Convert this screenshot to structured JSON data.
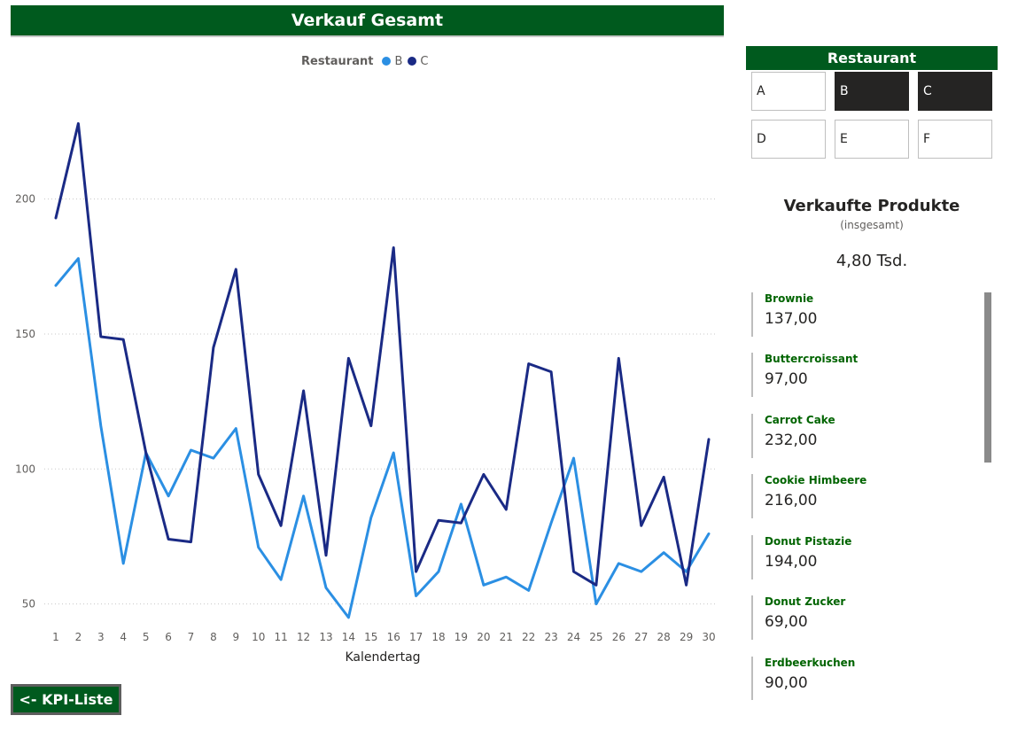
{
  "header": {
    "title": "Verkauf Gesamt"
  },
  "legend": {
    "title": "Restaurant",
    "items": [
      {
        "name": "B",
        "color": "#2b8fe3"
      },
      {
        "name": "C",
        "color": "#1a2a85"
      }
    ]
  },
  "chart_data": {
    "type": "line",
    "title": "Verkauf Gesamt",
    "xlabel": "Kalendertag",
    "ylabel": "",
    "x": [
      1,
      2,
      3,
      4,
      5,
      6,
      7,
      8,
      9,
      10,
      11,
      12,
      13,
      14,
      15,
      16,
      17,
      18,
      19,
      20,
      21,
      22,
      23,
      24,
      25,
      26,
      27,
      28,
      29,
      30
    ],
    "ylim": [
      42,
      236
    ],
    "yticks": [
      50,
      100,
      150,
      200
    ],
    "grid": true,
    "legend_title": "Restaurant",
    "legend_position": "top",
    "series": [
      {
        "name": "B",
        "color": "#2b8fe3",
        "values": [
          168,
          178,
          116,
          65,
          106,
          90,
          107,
          104,
          115,
          71,
          59,
          90,
          56,
          45,
          82,
          106,
          53,
          62,
          87,
          57,
          60,
          55,
          80,
          104,
          50,
          65,
          62,
          69,
          62,
          76
        ]
      },
      {
        "name": "C",
        "color": "#1a2a85",
        "values": [
          193,
          228,
          149,
          148,
          106,
          74,
          73,
          145,
          174,
          98,
          79,
          129,
          68,
          141,
          116,
          182,
          62,
          81,
          80,
          98,
          85,
          139,
          136,
          62,
          57,
          141,
          79,
          97,
          57,
          111
        ]
      }
    ]
  },
  "slicer": {
    "header": "Restaurant",
    "options": [
      {
        "label": "A",
        "selected": false
      },
      {
        "label": "B",
        "selected": true
      },
      {
        "label": "C",
        "selected": true
      },
      {
        "label": "D",
        "selected": false
      },
      {
        "label": "E",
        "selected": false
      },
      {
        "label": "F",
        "selected": false
      }
    ]
  },
  "kpi": {
    "title": "Verkaufte Produkte",
    "subtitle": "(insgesamt)",
    "value": "4,80 Tsd."
  },
  "products": [
    {
      "name": "Brownie",
      "value": "137,00"
    },
    {
      "name": "Buttercroissant",
      "value": "97,00"
    },
    {
      "name": "Carrot Cake",
      "value": "232,00"
    },
    {
      "name": "Cookie Himbeere",
      "value": "216,00"
    },
    {
      "name": "Donut Pistazie",
      "value": "194,00"
    },
    {
      "name": "Donut Zucker",
      "value": "69,00"
    },
    {
      "name": "Erdbeerkuchen",
      "value": "90,00"
    }
  ],
  "nav": {
    "back_label": "<- KPI-Liste"
  }
}
